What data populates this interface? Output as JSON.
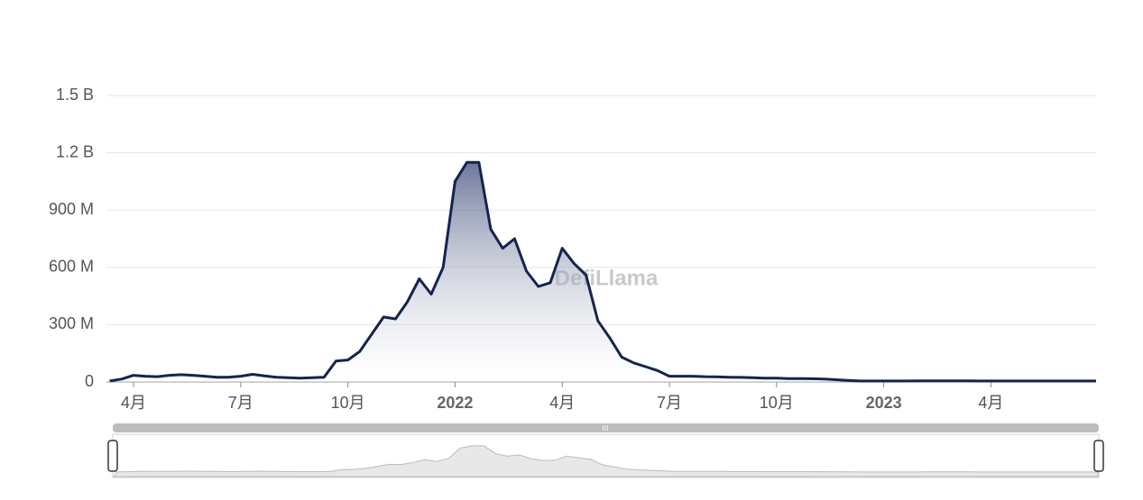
{
  "chart_data": {
    "type": "area",
    "watermark": "DefiLlama",
    "categories": [
      null,
      null,
      "4月",
      null,
      null,
      null,
      null,
      null,
      null,
      null,
      null,
      "7月",
      null,
      null,
      null,
      null,
      null,
      null,
      null,
      null,
      "10月",
      null,
      null,
      null,
      null,
      null,
      null,
      null,
      null,
      "2022",
      null,
      null,
      null,
      null,
      null,
      null,
      null,
      null,
      "4月",
      null,
      null,
      null,
      null,
      null,
      null,
      null,
      null,
      "7月",
      null,
      null,
      null,
      null,
      null,
      null,
      null,
      null,
      "10月",
      null,
      null,
      null,
      null,
      null,
      null,
      null,
      null,
      "2023",
      null,
      null,
      null,
      null,
      null,
      null,
      null,
      null,
      "4月",
      null,
      null,
      null,
      null,
      null,
      null,
      null,
      null
    ],
    "bold_categories": [
      "2022",
      "2023"
    ],
    "series": [
      {
        "color": "#14244f",
        "values": [
          5000000,
          15000000,
          35000000,
          30000000,
          28000000,
          35000000,
          38000000,
          35000000,
          30000000,
          25000000,
          25000000,
          30000000,
          40000000,
          32000000,
          25000000,
          22000000,
          20000000,
          22000000,
          25000000,
          110000000,
          115000000,
          160000000,
          250000000,
          340000000,
          330000000,
          420000000,
          540000000,
          460000000,
          600000000,
          1050000000,
          1150000000,
          1150000000,
          800000000,
          700000000,
          750000000,
          580000000,
          500000000,
          520000000,
          700000000,
          620000000,
          560000000,
          320000000,
          230000000,
          130000000,
          100000000,
          80000000,
          60000000,
          30000000,
          30000000,
          30000000,
          28000000,
          27000000,
          25000000,
          24000000,
          22000000,
          20000000,
          20000000,
          18000000,
          18000000,
          17000000,
          15000000,
          12000000,
          8000000,
          5000000,
          5000000,
          5000000,
          5000000,
          5000000,
          6000000,
          6000000,
          6000000,
          6000000,
          6000000,
          5000000,
          5000000,
          5000000,
          5000000,
          5000000,
          5000000,
          5000000,
          5000000,
          5000000,
          5000000
        ]
      }
    ],
    "ylim": [
      0,
      1500000000
    ],
    "yticks": [
      0,
      {
        "value": 300000000,
        "label": "300 M"
      },
      {
        "value": 600000000,
        "label": "600 M"
      },
      {
        "value": 900000000,
        "label": "900 M"
      },
      {
        "value": 1200000000,
        "label": "1.2 B"
      },
      {
        "value": 1500000000,
        "label": "1.5 B"
      }
    ],
    "grid": true
  }
}
